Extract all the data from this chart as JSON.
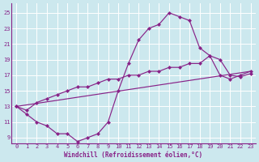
{
  "line1_x": [
    0,
    1,
    2,
    3,
    4,
    5,
    6,
    7,
    8,
    9,
    10,
    11,
    12,
    13,
    14,
    15,
    16,
    17,
    18,
    19,
    20,
    21,
    22,
    23
  ],
  "line1_y": [
    13,
    12,
    11,
    10.5,
    9.5,
    9.5,
    8.5,
    9,
    9.5,
    11,
    15,
    18.5,
    21.5,
    23,
    23.5,
    25,
    24.5,
    24,
    20.5,
    19.5,
    17,
    16.5,
    17,
    17.5
  ],
  "line2_x": [
    0,
    1,
    2,
    3,
    4,
    5,
    6,
    7,
    8,
    9,
    10,
    11,
    12,
    13,
    14,
    15,
    16,
    17,
    18,
    19,
    20,
    21,
    22,
    23
  ],
  "line2_y": [
    13,
    12.5,
    13.5,
    14.0,
    14.5,
    15.0,
    15.5,
    15.5,
    16.0,
    16.5,
    16.5,
    17.0,
    17.0,
    17.5,
    17.5,
    18.0,
    18.0,
    18.5,
    18.5,
    19.5,
    19.0,
    17.0,
    16.8,
    17.2
  ],
  "line3_x": [
    0,
    23
  ],
  "line3_y": [
    13,
    17.5
  ],
  "line_color": "#882288",
  "bg_color": "#cce8ee",
  "grid_color": "#ffffff",
  "xlabel": "Windchill (Refroidissement éolien,°C)",
  "xlim_min": -0.5,
  "xlim_max": 23.5,
  "ylim_min": 8.3,
  "ylim_max": 26.2,
  "yticks": [
    9,
    11,
    13,
    15,
    17,
    19,
    21,
    23,
    25
  ],
  "xticks": [
    0,
    1,
    2,
    3,
    4,
    5,
    6,
    7,
    8,
    9,
    10,
    11,
    12,
    13,
    14,
    15,
    16,
    17,
    18,
    19,
    20,
    21,
    22,
    23
  ],
  "markersize": 2.5,
  "linewidth": 0.85,
  "tick_fontsize": 5.0,
  "xlabel_fontsize": 5.5
}
